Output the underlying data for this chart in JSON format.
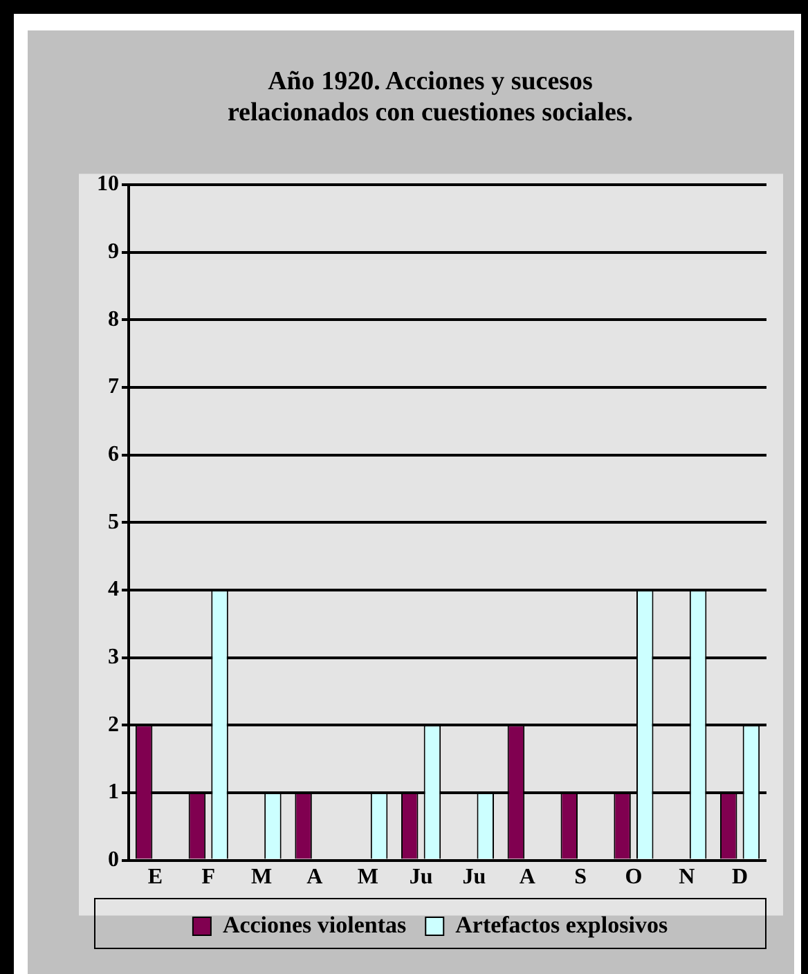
{
  "chart_data": {
    "type": "bar",
    "title": "Año 1920. Acciones y sucesos relacionados con cuestiones sociales.",
    "categories": [
      "E",
      "F",
      "M",
      "A",
      "M",
      "Ju",
      "Ju",
      "A",
      "S",
      "O",
      "N",
      "D"
    ],
    "series": [
      {
        "name": "Acciones violentas",
        "color": "#800050",
        "values": [
          2,
          1,
          0,
          1,
          0,
          1,
          0,
          2,
          1,
          1,
          0,
          1
        ]
      },
      {
        "name": "Artefactos explosivos",
        "color": "#ccffff",
        "values": [
          0,
          4,
          1,
          0,
          1,
          2,
          1,
          0,
          0,
          4,
          4,
          2
        ]
      }
    ],
    "ylim": [
      0,
      10
    ],
    "yticks": [
      0,
      1,
      2,
      3,
      4,
      5,
      6,
      7,
      8,
      9,
      10
    ],
    "grid": "y",
    "legend": "bottom"
  }
}
